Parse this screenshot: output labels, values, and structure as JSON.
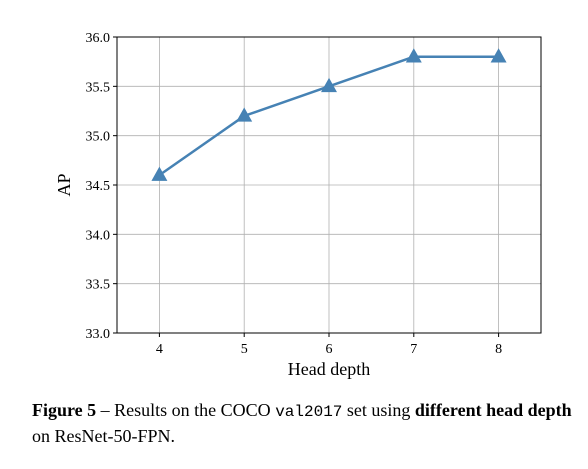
{
  "chart_data": {
    "type": "line",
    "x": [
      4,
      5,
      6,
      7,
      8
    ],
    "series": [
      {
        "values": [
          34.6,
          35.2,
          35.5,
          35.8,
          35.8
        ]
      }
    ],
    "xlabel": "Head depth",
    "ylabel": "AP",
    "xlim": [
      3.5,
      8.5
    ],
    "ylim": [
      33.0,
      36.0
    ],
    "xticks": [
      "4",
      "5",
      "6",
      "7",
      "8"
    ],
    "yticks": [
      "33.0",
      "33.5",
      "34.0",
      "34.5",
      "35.0",
      "35.5",
      "36.0"
    ],
    "grid": true,
    "marker": "triangle",
    "color": "#4682b4"
  },
  "caption": {
    "label": "Figure 5",
    "dash": " – Results on the COCO ",
    "code": "val2017",
    "mid": " set using ",
    "bold": "different head depth",
    "end": " on ResNet-50-FPN."
  }
}
